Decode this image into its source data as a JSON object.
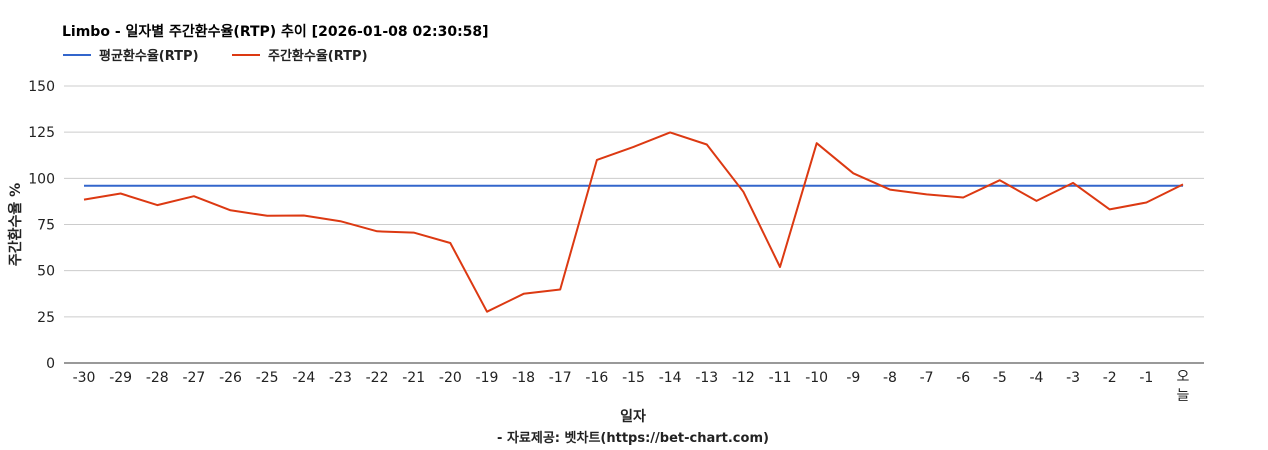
{
  "chart_data": {
    "type": "line",
    "title": "Limbo - 일자별 주간환수율(RTP) 추이 [2026-01-08 02:30:58]",
    "xlabel": "일자",
    "ylabel": "주간환수율 %",
    "source": "- 자료제공: 벳차트(https://bet-chart.com)",
    "ylim": [
      0,
      150
    ],
    "yticks": [
      0,
      25,
      50,
      75,
      100,
      125,
      150
    ],
    "grid": true,
    "legend_position": "top-left",
    "categories": [
      "-30",
      "-29",
      "-28",
      "-27",
      "-26",
      "-25",
      "-24",
      "-23",
      "-22",
      "-21",
      "-20",
      "-19",
      "-18",
      "-17",
      "-16",
      "-15",
      "-14",
      "-13",
      "-12",
      "-11",
      "-10",
      "-9",
      "-8",
      "-7",
      "-6",
      "-5",
      "-4",
      "-3",
      "-2",
      "-1",
      "오늘"
    ],
    "series": [
      {
        "name": "평균환수율(RTP)",
        "color": "#3366cc",
        "values": [
          96,
          96,
          96,
          96,
          96,
          96,
          96,
          96,
          96,
          96,
          96,
          96,
          96,
          96,
          96,
          96,
          96,
          96,
          96,
          96,
          96,
          96,
          96,
          96,
          96,
          96,
          96,
          96,
          96,
          96,
          96
        ]
      },
      {
        "name": "주간환수율(RTP)",
        "color": "#dc3912",
        "values": [
          88.5,
          91.8,
          85.5,
          90.3,
          82.7,
          79.7,
          79.9,
          76.8,
          71.3,
          70.6,
          65,
          27.8,
          37.5,
          39.8,
          110,
          117,
          124.9,
          118.3,
          92.7,
          52,
          119,
          102.7,
          93.9,
          91.3,
          89.6,
          99,
          87.8,
          97.5,
          83.2,
          86.9,
          96.7
        ]
      }
    ]
  }
}
